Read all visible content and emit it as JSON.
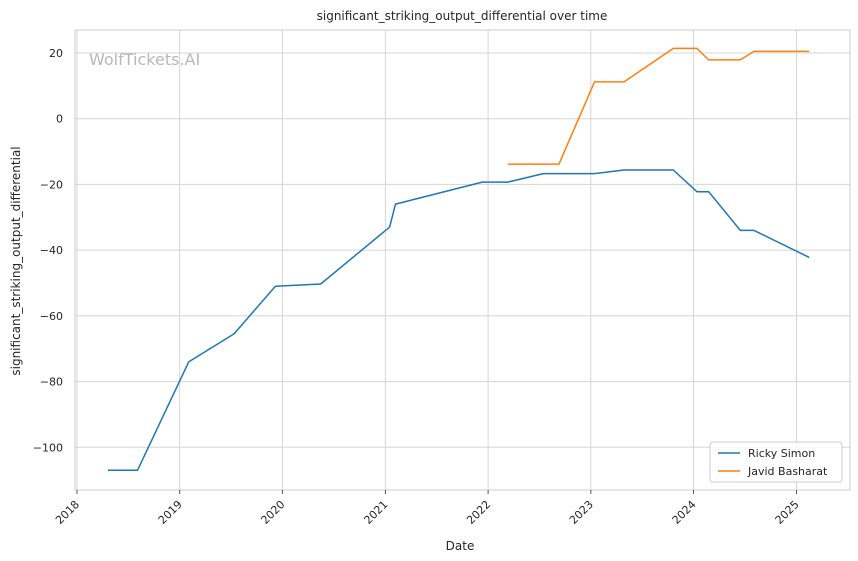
{
  "chart_data": {
    "type": "line",
    "title": "significant_striking_output_differential over time",
    "xlabel": "Date",
    "ylabel": "significant_striking_output_differential",
    "watermark": "WolfTickets.AI",
    "x_ticks": [
      "2018",
      "2019",
      "2020",
      "2021",
      "2022",
      "2023",
      "2024",
      "2025"
    ],
    "y_ticks": [
      20,
      0,
      -20,
      -40,
      -60,
      -80,
      -100
    ],
    "xlim": [
      "2017-12-25",
      "2025-07-10"
    ],
    "ylim": [
      -113,
      27
    ],
    "grid": true,
    "legend_position": "lower-right",
    "series": [
      {
        "name": "Ricky Simon",
        "color": "#1f77b4",
        "points": [
          [
            "2018-04-21",
            -107
          ],
          [
            "2018-08-04",
            -107
          ],
          [
            "2019-02-02",
            -74
          ],
          [
            "2019-07-13",
            -65.5
          ],
          [
            "2019-12-07",
            -51
          ],
          [
            "2020-05-16",
            -50.3
          ],
          [
            "2021-01-16",
            -33
          ],
          [
            "2021-02-06",
            -26
          ],
          [
            "2021-12-11",
            -19.3
          ],
          [
            "2022-03-12",
            -19.3
          ],
          [
            "2022-07-16",
            -16.7
          ],
          [
            "2023-01-14",
            -16.7
          ],
          [
            "2023-04-29",
            -15.6
          ],
          [
            "2023-10-21",
            -15.6
          ],
          [
            "2024-01-13",
            -22.2
          ],
          [
            "2024-02-24",
            -22.2
          ],
          [
            "2024-06-15",
            -34
          ],
          [
            "2024-08-03",
            -34
          ],
          [
            "2025-02-15",
            -42.2
          ]
        ]
      },
      {
        "name": "Javid Basharat",
        "color": "#ff7f0e",
        "points": [
          [
            "2022-03-12",
            -13.8
          ],
          [
            "2022-09-10",
            -13.8
          ],
          [
            "2023-01-14",
            11.2
          ],
          [
            "2023-04-29",
            11.2
          ],
          [
            "2023-10-21",
            21.4
          ],
          [
            "2024-01-13",
            21.4
          ],
          [
            "2024-02-24",
            17.9
          ],
          [
            "2024-06-15",
            17.9
          ],
          [
            "2024-08-03",
            20.5
          ],
          [
            "2025-02-15",
            20.5
          ]
        ]
      }
    ]
  }
}
